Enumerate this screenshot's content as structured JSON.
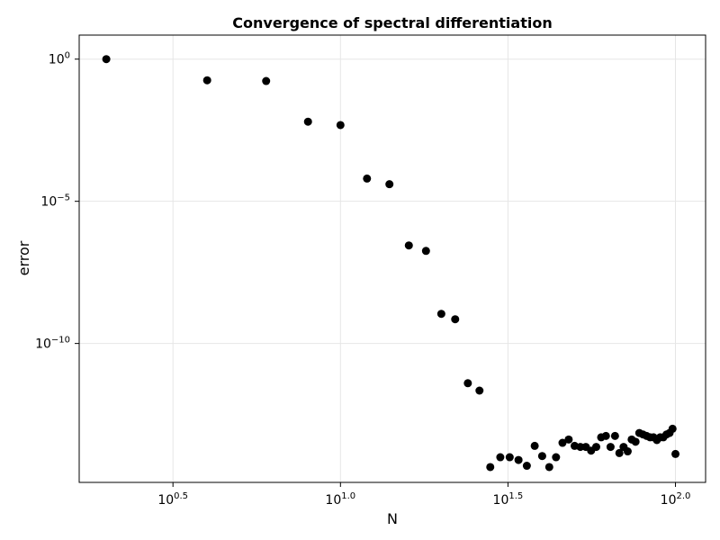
{
  "chart_data": {
    "type": "scatter",
    "title": "Convergence of spectral differentiation",
    "xlabel": "N",
    "ylabel": "error",
    "xscale": "log10",
    "yscale": "log10",
    "xlim": [
      1.66,
      123
    ],
    "ylim": [
      1.3e-15,
      7.0
    ],
    "grid": true,
    "legend": "none",
    "x_ticks": [
      {
        "value": 3.1623,
        "base": "10",
        "exp": "0.5"
      },
      {
        "value": 10,
        "base": "10",
        "exp": "1.0"
      },
      {
        "value": 31.623,
        "base": "10",
        "exp": "1.5"
      },
      {
        "value": 100,
        "base": "10",
        "exp": "2.0"
      }
    ],
    "y_ticks": [
      {
        "value": 1,
        "base": "10",
        "exp": "0"
      },
      {
        "value": 1e-05,
        "base": "10",
        "exp": "−5"
      },
      {
        "value": 1e-10,
        "base": "10",
        "exp": "−10"
      }
    ],
    "series": [
      {
        "marker_color": "#000000",
        "points": [
          [
            2,
            1.0
          ],
          [
            4,
            0.18
          ],
          [
            6,
            0.17
          ],
          [
            8,
            0.0063
          ],
          [
            10,
            0.0048
          ],
          [
            12,
            6.3e-05
          ],
          [
            14,
            4e-05
          ],
          [
            16,
            2.8e-07
          ],
          [
            18,
            1.8e-07
          ],
          [
            20,
            1.1e-09
          ],
          [
            22,
            7.1e-10
          ],
          [
            24,
            4e-12
          ],
          [
            26,
            2.2e-12
          ],
          [
            28,
            4.5e-15
          ],
          [
            30,
            1e-14
          ],
          [
            32,
            1e-14
          ],
          [
            34,
            8e-15
          ],
          [
            36,
            5e-15
          ],
          [
            38,
            2.5e-14
          ],
          [
            40,
            1.1e-14
          ],
          [
            42,
            4.5e-15
          ],
          [
            44,
            1e-14
          ],
          [
            46,
            3.2e-14
          ],
          [
            48,
            4.2e-14
          ],
          [
            50,
            2.5e-14
          ],
          [
            52,
            2.3e-14
          ],
          [
            54,
            2.3e-14
          ],
          [
            56,
            1.7e-14
          ],
          [
            58,
            2.3e-14
          ],
          [
            60,
            5e-14
          ],
          [
            62,
            5.6e-14
          ],
          [
            64,
            2.3e-14
          ],
          [
            66,
            5.6e-14
          ],
          [
            68,
            1.4e-14
          ],
          [
            70,
            2.3e-14
          ],
          [
            72,
            1.6e-14
          ],
          [
            74,
            4.2e-14
          ],
          [
            76,
            3.5e-14
          ],
          [
            78,
            7.1e-14
          ],
          [
            80,
            6.3e-14
          ],
          [
            82,
            5.6e-14
          ],
          [
            84,
            5e-14
          ],
          [
            86,
            5e-14
          ],
          [
            88,
            4e-14
          ],
          [
            90,
            5e-14
          ],
          [
            92,
            5e-14
          ],
          [
            94,
            6.3e-14
          ],
          [
            96,
            7.1e-14
          ],
          [
            98,
            1e-13
          ],
          [
            100,
            1.3e-14
          ]
        ]
      }
    ]
  }
}
